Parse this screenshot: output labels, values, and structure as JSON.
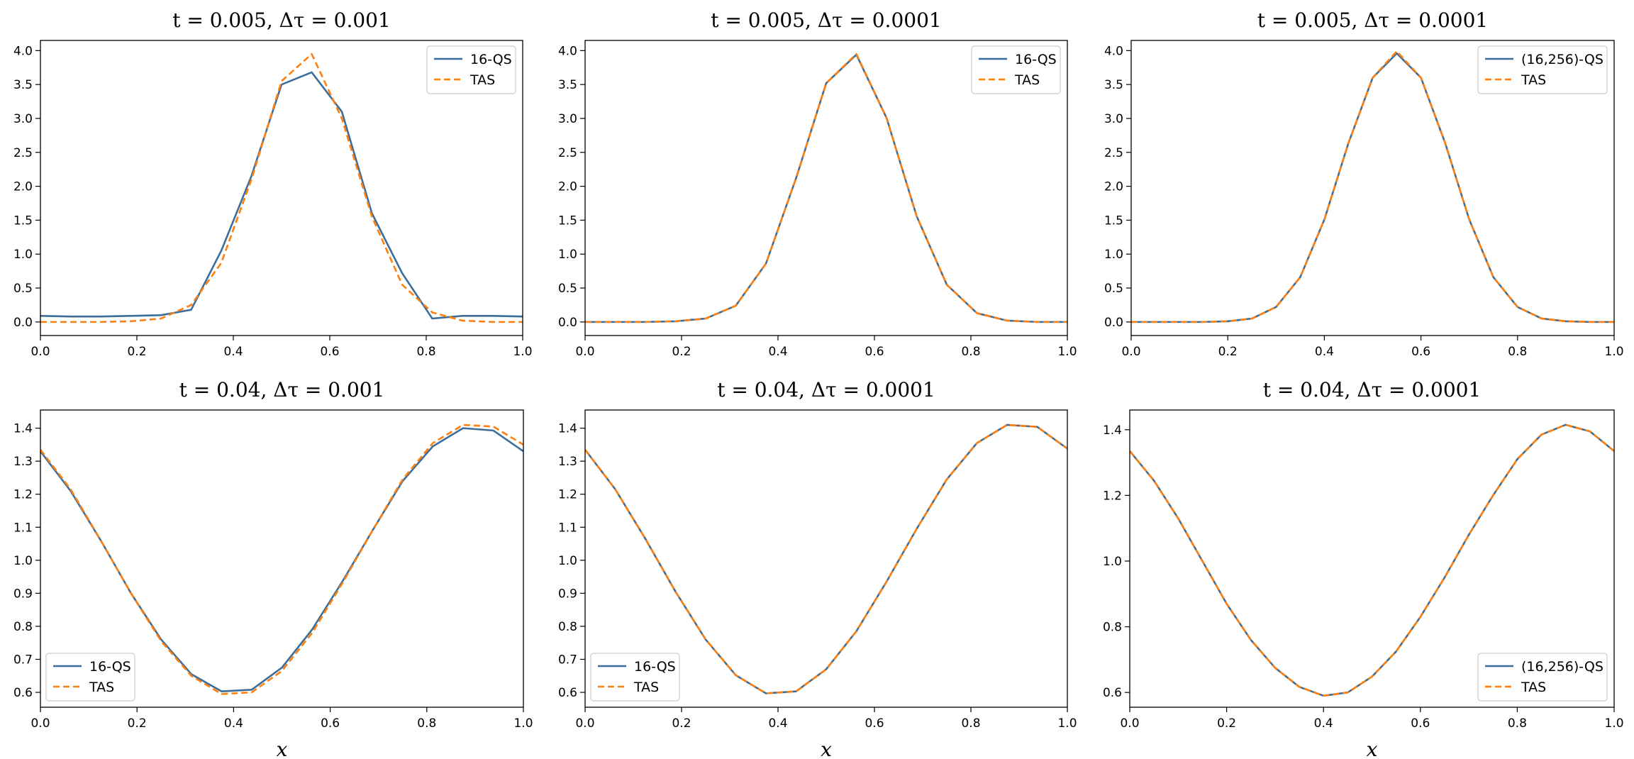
{
  "colors": {
    "qs": "#3d6e9a",
    "tas": "#ff7f0e"
  },
  "chart_data": [
    {
      "type": "line",
      "title": "t = 0.005,  Δτ = 0.001",
      "xlabel": "",
      "xlim": [
        0,
        1
      ],
      "ylim": [
        -0.2,
        4.15
      ],
      "xticks": [
        "0.0",
        "0.2",
        "0.4",
        "0.6",
        "0.8",
        "1.0"
      ],
      "yticks": [
        "0.0",
        "0.5",
        "1.0",
        "1.5",
        "2.0",
        "2.5",
        "3.0",
        "3.5",
        "4.0"
      ],
      "legend": "top-right",
      "series": [
        {
          "name": "16-QS",
          "style": "solid",
          "x": [
            0,
            0.0625,
            0.125,
            0.1875,
            0.25,
            0.3125,
            0.375,
            0.4375,
            0.5,
            0.5625,
            0.625,
            0.6875,
            0.75,
            0.8125,
            0.875,
            0.9375,
            1.0
          ],
          "y": [
            0.09,
            0.08,
            0.08,
            0.09,
            0.1,
            0.18,
            1.05,
            2.15,
            3.5,
            3.68,
            3.1,
            1.6,
            0.72,
            0.05,
            0.09,
            0.09,
            0.08
          ]
        },
        {
          "name": "TAS",
          "style": "dashed",
          "x": [
            0,
            0.0625,
            0.125,
            0.1875,
            0.25,
            0.3125,
            0.375,
            0.4375,
            0.5,
            0.5625,
            0.625,
            0.6875,
            0.75,
            0.8125,
            0.875,
            0.9375,
            1.0
          ],
          "y": [
            0.0,
            0.0,
            0.0,
            0.01,
            0.05,
            0.25,
            0.87,
            2.1,
            3.55,
            3.95,
            3.0,
            1.55,
            0.55,
            0.14,
            0.02,
            0.0,
            0.0
          ]
        }
      ]
    },
    {
      "type": "line",
      "title": "t = 0.005,  Δτ = 0.0001",
      "xlabel": "",
      "xlim": [
        0,
        1
      ],
      "ylim": [
        -0.2,
        4.15
      ],
      "xticks": [
        "0.0",
        "0.2",
        "0.4",
        "0.6",
        "0.8",
        "1.0"
      ],
      "yticks": [
        "0.0",
        "0.5",
        "1.0",
        "1.5",
        "2.0",
        "2.5",
        "3.0",
        "3.5",
        "4.0"
      ],
      "legend": "top-right",
      "series": [
        {
          "name": "16-QS",
          "style": "solid",
          "x": [
            0,
            0.0625,
            0.125,
            0.1875,
            0.25,
            0.3125,
            0.375,
            0.4375,
            0.5,
            0.5625,
            0.625,
            0.6875,
            0.75,
            0.8125,
            0.875,
            0.9375,
            1.0
          ],
          "y": [
            0.0,
            0.0,
            0.0,
            0.01,
            0.05,
            0.24,
            0.86,
            2.12,
            3.52,
            3.94,
            3.01,
            1.56,
            0.55,
            0.13,
            0.02,
            0.0,
            0.0
          ]
        },
        {
          "name": "TAS",
          "style": "dashed",
          "x": [
            0,
            0.0625,
            0.125,
            0.1875,
            0.25,
            0.3125,
            0.375,
            0.4375,
            0.5,
            0.5625,
            0.625,
            0.6875,
            0.75,
            0.8125,
            0.875,
            0.9375,
            1.0
          ],
          "y": [
            0.0,
            0.0,
            0.0,
            0.01,
            0.05,
            0.24,
            0.86,
            2.12,
            3.52,
            3.95,
            3.01,
            1.56,
            0.55,
            0.13,
            0.02,
            0.0,
            0.0
          ]
        }
      ]
    },
    {
      "type": "line",
      "title": "t = 0.005,  Δτ = 0.0001",
      "xlabel": "",
      "xlim": [
        0,
        1
      ],
      "ylim": [
        -0.2,
        4.15
      ],
      "xticks": [
        "0.0",
        "0.2",
        "0.4",
        "0.6",
        "0.8",
        "1.0"
      ],
      "yticks": [
        "0.0",
        "0.5",
        "1.0",
        "1.5",
        "2.0",
        "2.5",
        "3.0",
        "3.5",
        "4.0"
      ],
      "legend": "top-right",
      "series": [
        {
          "name": "(16,256)-QS",
          "style": "solid",
          "x": [
            0,
            0.05,
            0.1,
            0.15,
            0.2,
            0.25,
            0.3,
            0.35,
            0.4,
            0.45,
            0.5,
            0.55,
            0.6,
            0.65,
            0.7,
            0.75,
            0.8,
            0.85,
            0.9,
            0.95,
            1.0
          ],
          "y": [
            0.0,
            0.0,
            0.0,
            0.0,
            0.01,
            0.05,
            0.22,
            0.66,
            1.51,
            2.64,
            3.6,
            3.96,
            3.6,
            2.64,
            1.51,
            0.66,
            0.22,
            0.05,
            0.01,
            0.0,
            0.0
          ]
        },
        {
          "name": "TAS",
          "style": "dashed",
          "x": [
            0,
            0.05,
            0.1,
            0.15,
            0.2,
            0.25,
            0.3,
            0.35,
            0.4,
            0.45,
            0.5,
            0.55,
            0.6,
            0.65,
            0.7,
            0.75,
            0.8,
            0.85,
            0.9,
            0.95,
            1.0
          ],
          "y": [
            0.0,
            0.0,
            0.0,
            0.0,
            0.01,
            0.05,
            0.22,
            0.66,
            1.51,
            2.64,
            3.6,
            3.99,
            3.6,
            2.64,
            1.51,
            0.66,
            0.22,
            0.05,
            0.01,
            0.0,
            0.0
          ]
        }
      ]
    },
    {
      "type": "line",
      "title": "t = 0.04,  Δτ = 0.001",
      "xlabel": "x",
      "xlim": [
        0,
        1
      ],
      "ylim": [
        0.555,
        1.455
      ],
      "xticks": [
        "0.0",
        "0.2",
        "0.4",
        "0.6",
        "0.8",
        "1.0"
      ],
      "yticks": [
        "0.6",
        "0.7",
        "0.8",
        "0.9",
        "1.0",
        "1.1",
        "1.2",
        "1.3",
        "1.4"
      ],
      "legend": "bottom-left",
      "series": [
        {
          "name": "16-QS",
          "style": "solid",
          "x": [
            0,
            0.0625,
            0.125,
            0.1875,
            0.25,
            0.3125,
            0.375,
            0.4375,
            0.5,
            0.5625,
            0.625,
            0.6875,
            0.75,
            0.8125,
            0.875,
            0.9375,
            1.0
          ],
          "y": [
            1.33,
            1.21,
            1.06,
            0.9,
            0.76,
            0.655,
            0.603,
            0.608,
            0.675,
            0.79,
            0.935,
            1.09,
            1.24,
            1.345,
            1.4,
            1.393,
            1.33
          ]
        },
        {
          "name": "TAS",
          "style": "dashed",
          "x": [
            0,
            0.0625,
            0.125,
            0.1875,
            0.25,
            0.3125,
            0.375,
            0.4375,
            0.5,
            0.5625,
            0.625,
            0.6875,
            0.75,
            0.8125,
            0.875,
            0.9375,
            1.0
          ],
          "y": [
            1.335,
            1.215,
            1.06,
            0.9,
            0.755,
            0.65,
            0.595,
            0.6,
            0.665,
            0.78,
            0.93,
            1.09,
            1.245,
            1.355,
            1.41,
            1.405,
            1.35
          ]
        }
      ]
    },
    {
      "type": "line",
      "title": "t = 0.04,  Δτ = 0.0001",
      "xlabel": "x",
      "xlim": [
        0,
        1
      ],
      "ylim": [
        0.555,
        1.455
      ],
      "xticks": [
        "0.0",
        "0.2",
        "0.4",
        "0.6",
        "0.8",
        "1.0"
      ],
      "yticks": [
        "0.6",
        "0.7",
        "0.8",
        "0.9",
        "1.0",
        "1.1",
        "1.2",
        "1.3",
        "1.4"
      ],
      "legend": "bottom-left",
      "series": [
        {
          "name": "16-QS",
          "style": "solid",
          "x": [
            0,
            0.0625,
            0.125,
            0.1875,
            0.25,
            0.3125,
            0.375,
            0.4375,
            0.5,
            0.5625,
            0.625,
            0.6875,
            0.75,
            0.8125,
            0.875,
            0.9375,
            1.0
          ],
          "y": [
            1.335,
            1.215,
            1.065,
            0.905,
            0.76,
            0.652,
            0.597,
            0.603,
            0.67,
            0.785,
            0.935,
            1.095,
            1.245,
            1.355,
            1.41,
            1.404,
            1.338
          ]
        },
        {
          "name": "TAS",
          "style": "dashed",
          "x": [
            0,
            0.0625,
            0.125,
            0.1875,
            0.25,
            0.3125,
            0.375,
            0.4375,
            0.5,
            0.5625,
            0.625,
            0.6875,
            0.75,
            0.8125,
            0.875,
            0.9375,
            1.0
          ],
          "y": [
            1.335,
            1.215,
            1.065,
            0.905,
            0.76,
            0.652,
            0.597,
            0.603,
            0.67,
            0.785,
            0.935,
            1.095,
            1.245,
            1.355,
            1.41,
            1.404,
            1.338
          ]
        }
      ]
    },
    {
      "type": "line",
      "title": "t = 0.04,  Δτ = 0.0001",
      "xlabel": "x",
      "xlim": [
        0,
        1
      ],
      "ylim": [
        0.555,
        1.46
      ],
      "xticks": [
        "0.0",
        "0.2",
        "0.4",
        "0.6",
        "0.8",
        "1.0"
      ],
      "yticks": [
        "0.6",
        "0.8",
        "1.0",
        "1.2",
        "1.4"
      ],
      "legend": "bottom-right",
      "series": [
        {
          "name": "(16,256)-QS",
          "style": "solid",
          "x": [
            0,
            0.05,
            0.1,
            0.15,
            0.2,
            0.25,
            0.3,
            0.35,
            0.4,
            0.45,
            0.5,
            0.55,
            0.6,
            0.65,
            0.7,
            0.75,
            0.8,
            0.85,
            0.9,
            0.95,
            1.0
          ],
          "y": [
            1.335,
            1.245,
            1.13,
            1.0,
            0.87,
            0.76,
            0.675,
            0.617,
            0.59,
            0.6,
            0.648,
            0.725,
            0.83,
            0.95,
            1.08,
            1.2,
            1.31,
            1.385,
            1.415,
            1.395,
            1.335
          ]
        },
        {
          "name": "TAS",
          "style": "dashed",
          "x": [
            0,
            0.05,
            0.1,
            0.15,
            0.2,
            0.25,
            0.3,
            0.35,
            0.4,
            0.45,
            0.5,
            0.55,
            0.6,
            0.65,
            0.7,
            0.75,
            0.8,
            0.85,
            0.9,
            0.95,
            1.0
          ],
          "y": [
            1.335,
            1.245,
            1.13,
            1.0,
            0.87,
            0.76,
            0.675,
            0.617,
            0.59,
            0.6,
            0.648,
            0.725,
            0.83,
            0.95,
            1.08,
            1.2,
            1.31,
            1.385,
            1.415,
            1.395,
            1.335
          ]
        }
      ]
    }
  ]
}
